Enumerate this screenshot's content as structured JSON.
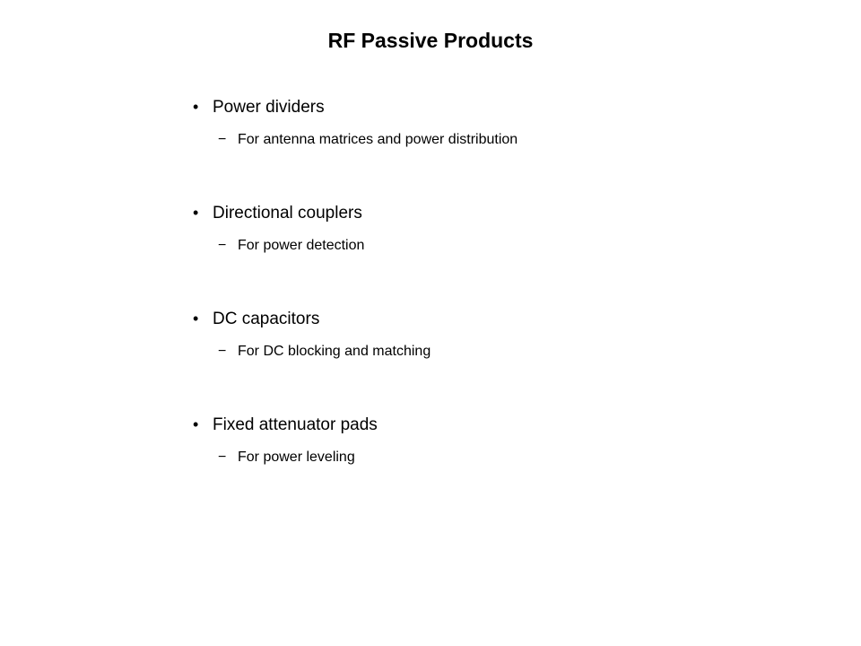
{
  "title": "RF Passive Products",
  "items": [
    {
      "label": "Power dividers",
      "sub": "For antenna matrices and power distribution"
    },
    {
      "label": "Directional couplers",
      "sub": "For power detection"
    },
    {
      "label": "DC capacitors",
      "sub": "For DC blocking and matching"
    },
    {
      "label": "Fixed attenuator pads",
      "sub": "For power leveling"
    }
  ],
  "styling": {
    "background_color": "#ffffff",
    "text_color": "#000000",
    "title_fontsize": 23,
    "title_fontweight": "bold",
    "main_item_fontsize": 19,
    "sub_item_fontsize": 16,
    "font_family": "Verdana, Geneva, sans-serif",
    "bullet_main": "•",
    "bullet_sub": "−"
  }
}
